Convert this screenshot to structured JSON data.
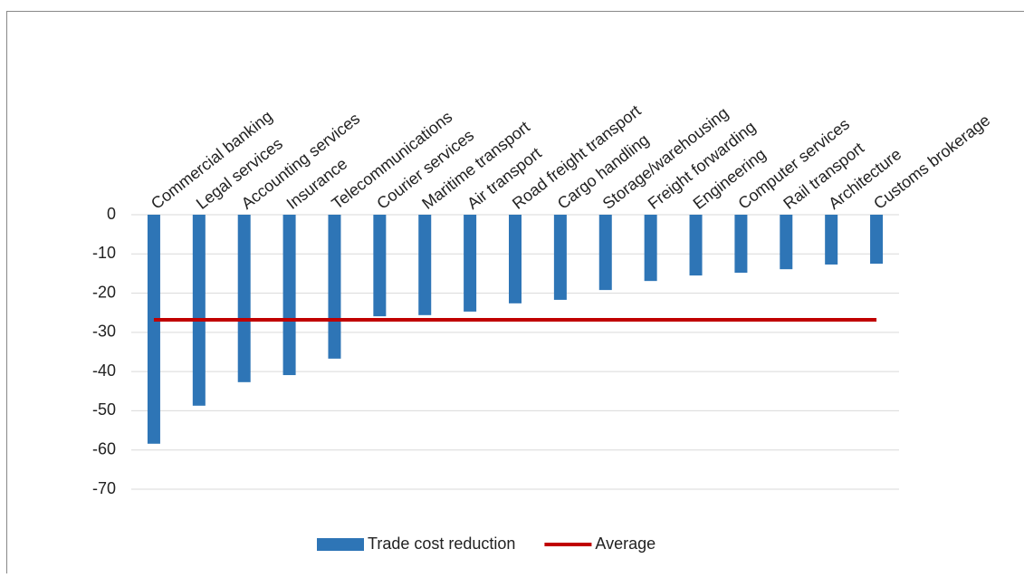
{
  "chart_data": {
    "type": "bar",
    "categories": [
      "Commercial banking",
      "Legal services",
      "Accounting services",
      "Insurance",
      "Telecommunications",
      "Courier services",
      "Maritime transport",
      "Air transport",
      "Road freight transport",
      "Cargo handling",
      "Storage/warehousing",
      "Freight forwarding",
      "Engineering",
      "Computer services",
      "Rail transport",
      "Architecture",
      "Customs brokerage"
    ],
    "series": [
      {
        "name": "Trade cost reduction",
        "type": "bar",
        "color": "#2e75b6",
        "values": [
          -58.4,
          -48.7,
          -42.7,
          -40.9,
          -36.7,
          -25.9,
          -25.6,
          -24.7,
          -22.6,
          -21.7,
          -19.2,
          -16.9,
          -15.5,
          -14.8,
          -13.9,
          -12.7,
          -12.5
        ]
      },
      {
        "name": "Average",
        "type": "line",
        "color": "#c00000",
        "values": [
          -26.8,
          -26.8,
          -26.8,
          -26.8,
          -26.8,
          -26.8,
          -26.8,
          -26.8,
          -26.8,
          -26.8,
          -26.8,
          -26.8,
          -26.8,
          -26.8,
          -26.8,
          -26.8,
          -26.8
        ]
      }
    ],
    "ylim": [
      -70,
      0
    ],
    "yticks": [
      0,
      -10,
      -20,
      -30,
      -40,
      -50,
      -60,
      -70
    ],
    "grid": true,
    "legend": "bottom"
  }
}
